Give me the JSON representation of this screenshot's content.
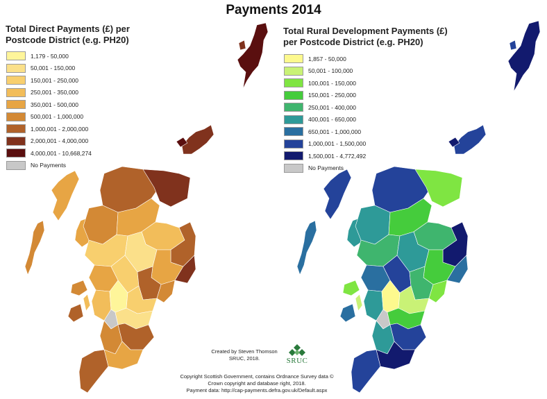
{
  "title": "Payments 2014",
  "left_legend": {
    "title_line1": "Total Direct Payments (£) per",
    "title_line2": "Postcode District (e.g. PH20)",
    "items": [
      {
        "label": "1,179 - 50,000",
        "color": "#fef59a"
      },
      {
        "label": "50,001 - 150,000",
        "color": "#fbe08a"
      },
      {
        "label": "150,001 - 250,000",
        "color": "#f8cf6e"
      },
      {
        "label": "250,001 - 350,000",
        "color": "#f2bd5a"
      },
      {
        "label": "350,001 - 500,000",
        "color": "#e7a544"
      },
      {
        "label": "500,001 - 1,000,000",
        "color": "#d38935"
      },
      {
        "label": "1,000,001 - 2,000,000",
        "color": "#b0622a"
      },
      {
        "label": "2,000,001 - 4,000,000",
        "color": "#80321d"
      },
      {
        "label": "4,000,001 - 10,668,274",
        "color": "#5a0f0f"
      },
      {
        "label": "No Payments",
        "color": "#c8c8c8"
      }
    ]
  },
  "right_legend": {
    "title_line1": "Total Rural Development Payments (£)",
    "title_line2": "per Postcode District (e.g. PH20)",
    "items": [
      {
        "label": "1,857 - 50,000",
        "color": "#fdf98e"
      },
      {
        "label": "50,001 - 100,000",
        "color": "#c9f276"
      },
      {
        "label": "100,001 - 150,000",
        "color": "#7fe542"
      },
      {
        "label": "150,001 - 250,000",
        "color": "#45cc3c"
      },
      {
        "label": "250,001 - 400,000",
        "color": "#3fb56e"
      },
      {
        "label": "400,001 - 650,000",
        "color": "#2e9a98"
      },
      {
        "label": "650,001 - 1,000,000",
        "color": "#2a6fa0"
      },
      {
        "label": "1,000,001 - 1,500,000",
        "color": "#24439a"
      },
      {
        "label": "1,500,001 - 4,772,492",
        "color": "#121a6e"
      },
      {
        "label": "No Payments",
        "color": "#c8c8c8"
      }
    ]
  },
  "credit": {
    "line1": "Created by Steven Thomson",
    "line2": "SRUC, 2018."
  },
  "logo": {
    "text": "SRUC",
    "icon": "sruc-diamond-logo-icon"
  },
  "copyright": {
    "line1": "Copyright Scottish Government, contains Ordnance Survey data ©",
    "line2": "Crown copyright and database right, 2018.",
    "line3": "Payment data: http://cap-payments.defra.gov.uk/Default.aspx"
  }
}
